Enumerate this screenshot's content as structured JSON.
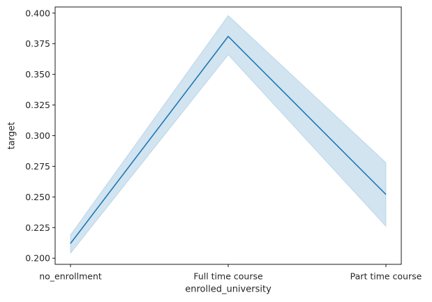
{
  "chart_data": {
    "type": "line",
    "title": "",
    "xlabel": "enrolled_university",
    "ylabel": "target",
    "categories": [
      "no_enrollment",
      "Full time course",
      "Part time course"
    ],
    "series": [
      {
        "values": [
          0.212,
          0.381,
          0.252
        ],
        "ci_lower": [
          0.204,
          0.366,
          0.226
        ],
        "ci_upper": [
          0.219,
          0.398,
          0.278
        ]
      }
    ],
    "ylim": [
      0.195,
      0.405
    ],
    "yticks": [
      0.2,
      0.225,
      0.25,
      0.275,
      0.3,
      0.325,
      0.35,
      0.375,
      0.4
    ],
    "ytick_labels": [
      "0.200",
      "0.225",
      "0.250",
      "0.275",
      "0.300",
      "0.325",
      "0.350",
      "0.375",
      "0.400"
    ],
    "grid": false,
    "colors": {
      "line": "#1f77b4",
      "band": "#1f77b4",
      "axes": "#000000"
    }
  }
}
